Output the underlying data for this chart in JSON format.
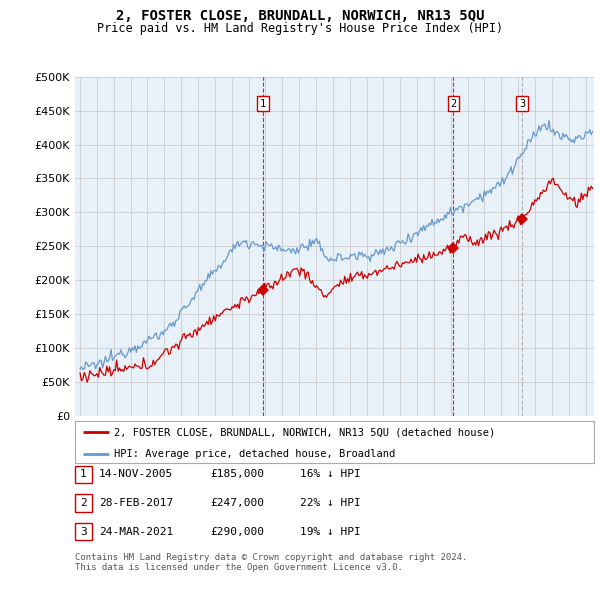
{
  "title": "2, FOSTER CLOSE, BRUNDALL, NORWICH, NR13 5QU",
  "subtitle": "Price paid vs. HM Land Registry's House Price Index (HPI)",
  "ylim": [
    0,
    500000
  ],
  "xlim_start": 1994.7,
  "xlim_end": 2025.5,
  "sale_dates": [
    2005.87,
    2017.16,
    2021.23
  ],
  "sale_prices": [
    185000,
    247000,
    290000
  ],
  "sale_labels": [
    "1",
    "2",
    "3"
  ],
  "vline_styles": [
    "dashed_red",
    "dashed_red",
    "dashed_gray"
  ],
  "legend_red": "2, FOSTER CLOSE, BRUNDALL, NORWICH, NR13 5QU (detached house)",
  "legend_blue": "HPI: Average price, detached house, Broadland",
  "table_data": [
    [
      "1",
      "14-NOV-2005",
      "£185,000",
      "16% ↓ HPI"
    ],
    [
      "2",
      "28-FEB-2017",
      "£247,000",
      "22% ↓ HPI"
    ],
    [
      "3",
      "24-MAR-2021",
      "£290,000",
      "19% ↓ HPI"
    ]
  ],
  "footnote1": "Contains HM Land Registry data © Crown copyright and database right 2024.",
  "footnote2": "This data is licensed under the Open Government Licence v3.0.",
  "hpi_color": "#6699cc",
  "sale_color": "#cc0000",
  "grid_color": "#cccccc",
  "bg_color": "#ffffff",
  "chart_bg": "#e8f0f8"
}
